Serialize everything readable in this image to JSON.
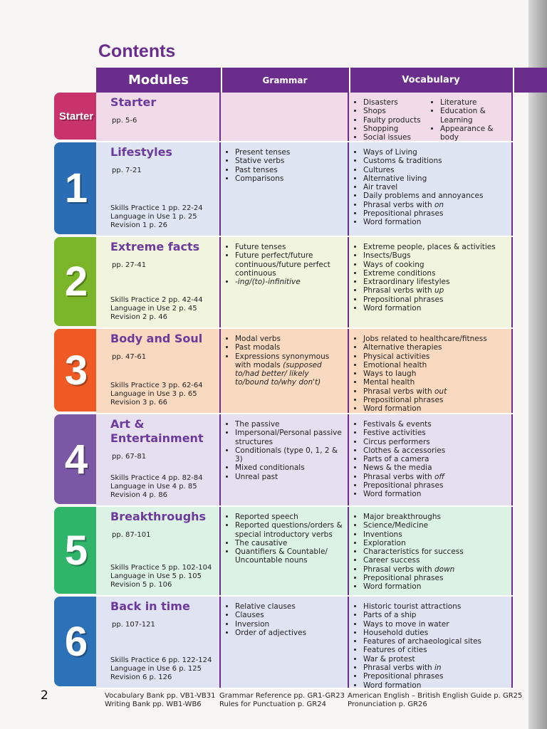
{
  "page_title": "Contents",
  "page_number": "2",
  "headers": {
    "modules": "Modules",
    "grammar": "Grammar",
    "vocabulary": "Vocabulary"
  },
  "rows": [
    {
      "tab": "Starter",
      "color": "#c8336b",
      "bg": "#f1dbe8",
      "title": "Starter",
      "pages": "pp. 5-6",
      "skills": [],
      "grammar": [],
      "vocab": [
        "Disasters",
        "Shops",
        "Faulty products",
        "Shopping",
        "Social issues"
      ],
      "vocab2": [
        "Literature",
        "Education & Learning",
        "Appearance & body"
      ]
    },
    {
      "tab": "1",
      "color": "#2a6db5",
      "bg": "#dfe5f3",
      "title": "Lifestyles",
      "pages": "pp. 7-21",
      "skills": [
        "Skills Practice 1 pp. 22-24",
        "Language in Use 1 p. 25",
        "Revision 1 p. 26"
      ],
      "grammar": [
        "Present tenses",
        "Stative verbs",
        "Past tenses",
        "Comparisons"
      ],
      "vocab": [
        "Ways of Living",
        "Customs & traditions",
        "Cultures",
        "Alternative living",
        "Air travel",
        "Daily problems and annoyances",
        {
          "t": "Phrasal verbs with ",
          "em": "on"
        },
        "Prepositional phrases",
        "Word formation"
      ]
    },
    {
      "tab": "2",
      "color": "#7ab52a",
      "bg": "#f2f5de",
      "title": "Extreme facts",
      "pages": "pp. 27-41",
      "skills": [
        "Skills Practice 2 pp. 42-44",
        "Language in Use 2 p. 45",
        "Revision 2 p. 46"
      ],
      "grammar": [
        "Future tenses",
        "Future perfect/future continuous/future perfect continuous",
        {
          "t": "",
          "em": "-ing/(to)-infinitive"
        }
      ],
      "vocab": [
        "Extreme people, places & activities",
        "Insects/Bugs",
        "Ways of cooking",
        "Extreme conditions",
        "Extraordinary lifestyles",
        {
          "t": "Phrasal verbs with ",
          "em": "up"
        },
        "Prepositional phrases",
        "Word formation"
      ]
    },
    {
      "tab": "3",
      "color": "#ef5a24",
      "bg": "#f9dac0",
      "title": "Body and Soul",
      "pages": "pp. 47-61",
      "skills": [
        "Skills Practice 3 pp. 62-64",
        "Language in Use 3 p. 65",
        "Revision 3 p. 66"
      ],
      "grammar": [
        "Modal verbs",
        "Past modals",
        {
          "t": "Expressions synonymous with modals ",
          "em": "(supposed to/had better/ likely to/bound to/why don't)"
        }
      ],
      "vocab": [
        "Jobs related to healthcare/fitness",
        "Alternative therapies",
        "Physical activities",
        "Emotional health",
        "Ways to laugh",
        "Mental health",
        {
          "t": "Phrasal verbs with ",
          "em": "out"
        },
        "Prepositional phrases",
        "Word formation"
      ]
    },
    {
      "tab": "4",
      "color": "#7b58a6",
      "bg": "#e6dff0",
      "title": "Art & Entertainment",
      "pages": "pp. 67-81",
      "skills": [
        "Skills Practice 4 pp. 82-84",
        "Language in Use 4 p. 85",
        "Revision 4 p. 86"
      ],
      "grammar": [
        "The passive",
        "Impersonal/Personal passive structures",
        "Conditionals (type 0, 1, 2 & 3)",
        "Mixed conditionals",
        "Unreal past"
      ],
      "vocab": [
        "Festivals & events",
        "Festive activities",
        "Circus performers",
        "Clothes & accessories",
        "Parts of a camera",
        "News & the media",
        {
          "t": "Phrasal verbs with ",
          "em": "off"
        },
        "Prepositional phrases",
        "Word formation"
      ]
    },
    {
      "tab": "5",
      "color": "#2fb56a",
      "bg": "#dcf2e5",
      "title": "Breakthroughs",
      "pages": "pp. 87-101",
      "skills": [
        "Skills Practice 5 pp. 102-104",
        "Language in Use 5 p. 105",
        "Revision 5 p. 106"
      ],
      "grammar": [
        "Reported speech",
        "Reported questions/orders & special introductory verbs",
        "The causative",
        "Quantifiers & Countable/ Uncountable nouns"
      ],
      "vocab": [
        "Major breakthroughs",
        "Science/Medicine",
        "Inventions",
        "Exploration",
        "Characteristics for success",
        "Career success",
        {
          "t": "Phrasal verbs with ",
          "em": "down"
        },
        "Prepositional phrases",
        "Word formation"
      ]
    },
    {
      "tab": "6",
      "color": "#2c72b8",
      "bg": "#dfe3f2",
      "title": "Back in time",
      "pages": "pp. 107-121",
      "skills": [
        "Skills Practice 6 pp. 122-124",
        "Language in Use 6 p. 125",
        "Revision 6 p. 126"
      ],
      "grammar": [
        "Relative clauses",
        "Clauses",
        "Inversion",
        "Order of adjectives"
      ],
      "vocab": [
        "Historic tourist attractions",
        "Parts of a ship",
        "Ways to move in water",
        "Household duties",
        "Features of archaeological sites",
        "Features of cities",
        "War & protest",
        {
          "t": "Phrasal verbs with ",
          "em": "in"
        },
        "Prepositional phrases",
        "Word formation"
      ]
    }
  ],
  "footer": {
    "col1": [
      "Vocabulary Bank pp. VB1-VB31",
      "Writing Bank pp. WB1-WB6"
    ],
    "col2": [
      "Grammar Reference pp. GR1-GR23",
      "Rules for Punctuation p. GR24"
    ],
    "col3": [
      "American English – British English Guide p. GR25",
      "Pronunciation p. GR26"
    ]
  }
}
